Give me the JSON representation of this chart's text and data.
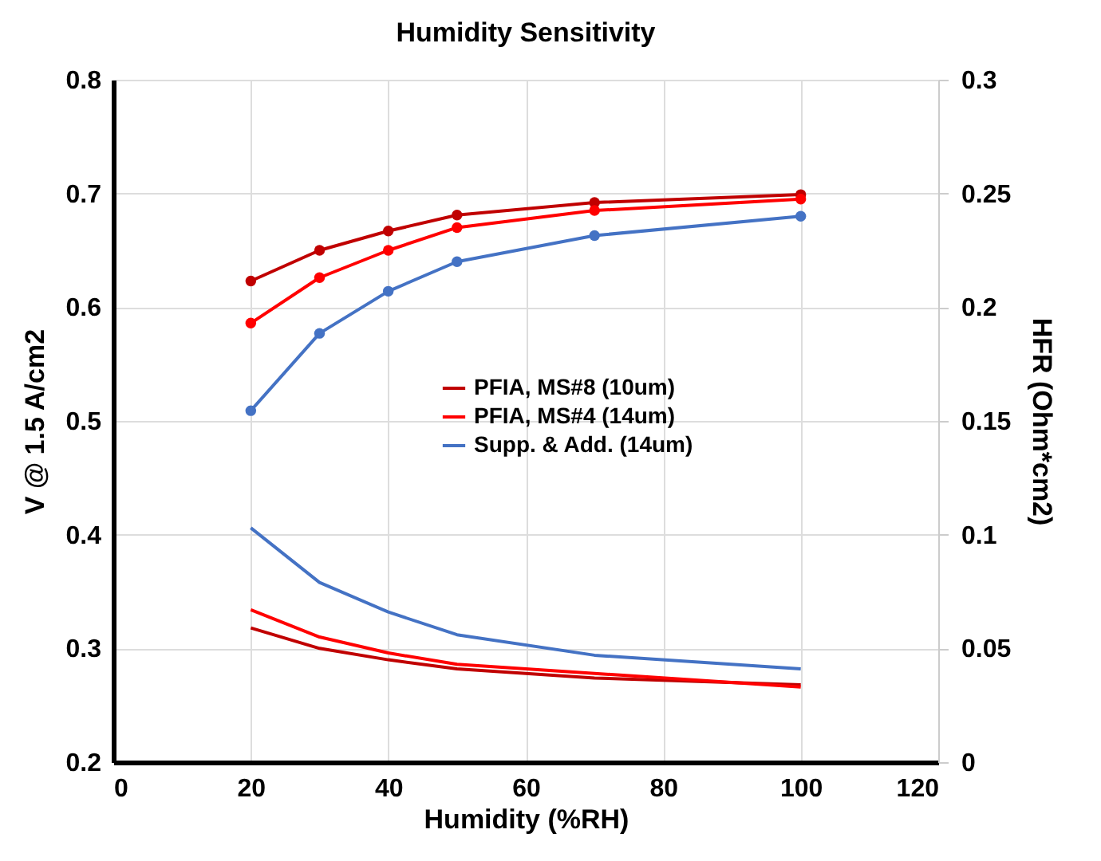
{
  "chart_data": {
    "type": "line",
    "title": "Humidity Sensitivity",
    "xlabel": "Humidity (%RH)",
    "ylabel": "V @ 1.5  A/cm2",
    "y2label": "HFR (Ohm*cm2)",
    "x": [
      20,
      30,
      40,
      50,
      70,
      100
    ],
    "series": [
      {
        "name": "PFIA, MS#8 (10um)",
        "color": "#c00000",
        "marker": "circle",
        "values": [
          0.623,
          0.65,
          0.667,
          0.681,
          0.692,
          0.699
        ]
      },
      {
        "name": "PFIA, MS#4 (14um)",
        "color": "#ff0000",
        "marker": "circle",
        "values": [
          0.586,
          0.626,
          0.65,
          0.67,
          0.685,
          0.695
        ]
      },
      {
        "name": "Supp. & Add. (14um)",
        "color": "#4472c4",
        "marker": "circle",
        "values": [
          0.509,
          0.577,
          0.614,
          0.64,
          0.663,
          0.68
        ]
      },
      {
        "color": "#c00000",
        "axis": "y2",
        "marker": "none",
        "values": [
          0.059,
          0.05,
          0.045,
          0.041,
          0.037,
          0.034
        ]
      },
      {
        "color": "#ff0000",
        "axis": "y2",
        "marker": "none",
        "values": [
          0.067,
          0.055,
          0.048,
          0.043,
          0.039,
          0.033
        ]
      },
      {
        "color": "#4472c4",
        "axis": "y2",
        "marker": "none",
        "values": [
          0.103,
          0.079,
          0.066,
          0.056,
          0.047,
          0.041
        ]
      }
    ],
    "xlim": [
      0,
      120
    ],
    "xticks": [
      0,
      20,
      40,
      60,
      80,
      100,
      120
    ],
    "ylim": [
      0.2,
      0.8
    ],
    "yticks": [
      0.2,
      0.3,
      0.4,
      0.5,
      0.6,
      0.7,
      0.8
    ],
    "y2lim": [
      0,
      0.3
    ],
    "y2ticks": [
      0,
      0.05,
      0.1,
      0.15,
      0.2,
      0.25,
      0.3
    ],
    "grid": true,
    "legend": "right",
    "line_style": "solid"
  }
}
